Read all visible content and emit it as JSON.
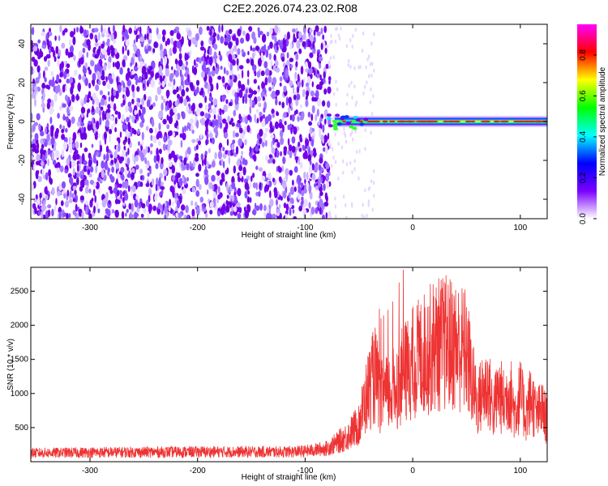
{
  "title": "C2E2.2026.074.23.02.R08",
  "chart_data": [
    {
      "type": "heatmap",
      "xlabel": "Height of straight line (km)",
      "ylabel": "Frequency (Hz)",
      "xlim": [
        -355,
        125
      ],
      "ylim": [
        -50,
        50
      ],
      "xticks": [
        "-300",
        "-200",
        "-100",
        "0",
        "100"
      ],
      "xtick_values": [
        -300,
        -200,
        -100,
        0,
        100
      ],
      "yticks": [
        "-40",
        "-20",
        "0",
        "20",
        "40"
      ],
      "ytick_values": [
        -40,
        -20,
        0,
        20,
        40
      ],
      "colorbar": {
        "label": "Normalized spectral amplitude",
        "range": [
          0,
          0.95
        ],
        "ticks": [
          "0.0",
          "0.2",
          "0.4",
          "0.6",
          "0.8"
        ],
        "tick_values": [
          0,
          0.2,
          0.4,
          0.6,
          0.8
        ],
        "colors": [
          "#ffffff",
          "#7a00ff",
          "#0000ff",
          "#00ffff",
          "#00ff00",
          "#ffff00",
          "#ff0000",
          "#ff00ff"
        ]
      },
      "regions": [
        {
          "name": "noise",
          "x_range": [
            -355,
            -77
          ],
          "freq_range": [
            -50,
            48
          ],
          "amplitude": 0.1
        },
        {
          "name": "signal_band",
          "x_range": [
            -80,
            125
          ],
          "center_freq": 0,
          "amplitude_peak": 0.8
        }
      ]
    },
    {
      "type": "line",
      "xlabel": "Height of straight line (km)",
      "ylabel": "SNR (10 * v/v)",
      "xlim": [
        -355,
        125
      ],
      "ylim": [
        0,
        2850
      ],
      "xticks": [
        "-300",
        "-200",
        "-100",
        "0",
        "100"
      ],
      "xtick_values": [
        -300,
        -200,
        -100,
        0,
        100
      ],
      "yticks": [
        "500",
        "1000",
        "1500",
        "2000",
        "2500"
      ],
      "ytick_values": [
        500,
        1000,
        1500,
        2000,
        2500
      ],
      "color": "#ee3333",
      "envelope": {
        "x": [
          -355,
          -300,
          -200,
          -120,
          -100,
          -80,
          -70,
          -60,
          -50,
          -45,
          -40,
          -35,
          -30,
          -20,
          -10,
          0,
          10,
          20,
          30,
          40,
          50,
          55,
          60,
          65,
          70,
          75,
          80,
          85,
          90,
          95,
          100,
          105,
          110,
          115,
          120,
          125
        ],
        "y": [
          150,
          160,
          170,
          170,
          180,
          230,
          330,
          450,
          650,
          1000,
          1300,
          1500,
          1100,
          1200,
          1450,
          1700,
          1850,
          2000,
          2050,
          2000,
          1900,
          1400,
          1000,
          1200,
          1300,
          900,
          1200,
          1000,
          1250,
          850,
          1150,
          800,
          1100,
          800,
          900,
          700
        ]
      }
    }
  ]
}
